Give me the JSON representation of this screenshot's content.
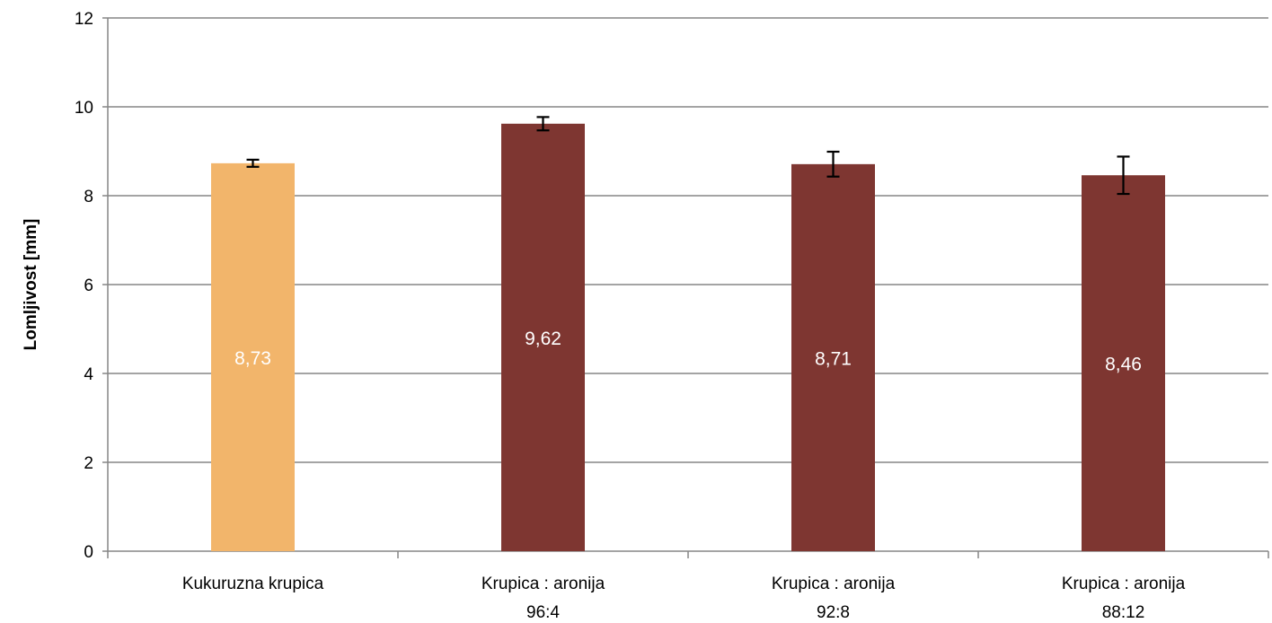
{
  "chart_data": {
    "type": "bar",
    "title": "",
    "xlabel": "",
    "ylabel": "Lomljivost [mm]",
    "ylim": [
      0,
      12
    ],
    "yticks": [
      0,
      2,
      4,
      6,
      8,
      10,
      12
    ],
    "grid": true,
    "legend": "none",
    "categories": [
      [
        "Kukuruzna krupica"
      ],
      [
        "Krupica : aronija",
        "96:4"
      ],
      [
        "Krupica : aronija",
        "92:8"
      ],
      [
        "Krupica : aronija",
        "88:12"
      ]
    ],
    "values": [
      8.73,
      9.62,
      8.71,
      8.46
    ],
    "errors": [
      0.08,
      0.15,
      0.28,
      0.42
    ],
    "data_labels": [
      "8,73",
      "9,62",
      "8,71",
      "8,46"
    ],
    "colors": [
      "#F2B56B",
      "#7E3631",
      "#7E3631",
      "#7E3631"
    ],
    "gridline_color": "#868686",
    "error_bar_color": "#000000",
    "data_label_color": "#FFFFFF"
  }
}
